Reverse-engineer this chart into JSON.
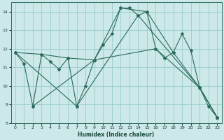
{
  "xlabel": "Humidex (Indice chaleur)",
  "ylabel": "",
  "xlim": [
    -0.5,
    23.5
  ],
  "ylim": [
    8,
    14.5
  ],
  "yticks": [
    8,
    9,
    10,
    11,
    12,
    13,
    14
  ],
  "xticks": [
    0,
    1,
    2,
    3,
    4,
    5,
    6,
    7,
    8,
    9,
    10,
    11,
    12,
    13,
    14,
    15,
    16,
    17,
    18,
    19,
    20,
    21,
    22,
    23
  ],
  "bg_color": "#cce8e8",
  "grid_color": "#99cccc",
  "line_color": "#2a6b5a",
  "lines": [
    {
      "x": [
        0,
        1,
        2,
        3,
        4,
        5,
        6,
        7,
        8,
        9,
        10,
        11,
        12,
        13,
        14,
        15,
        16,
        17,
        18,
        19,
        20,
        21,
        22,
        23
      ],
      "y": [
        11.8,
        11.2,
        8.9,
        11.7,
        11.3,
        10.9,
        11.5,
        8.9,
        10.0,
        11.4,
        12.2,
        12.8,
        14.2,
        14.2,
        13.8,
        14.0,
        12.0,
        11.5,
        11.8,
        12.8,
        11.9,
        9.9,
        8.9,
        8.3
      ]
    },
    {
      "x": [
        0,
        3,
        6,
        9,
        12,
        15,
        18,
        21,
        23
      ],
      "y": [
        11.8,
        11.7,
        11.5,
        11.4,
        14.2,
        14.0,
        11.8,
        9.9,
        8.3
      ]
    },
    {
      "x": [
        0,
        7,
        14,
        21,
        23
      ],
      "y": [
        11.8,
        8.9,
        13.8,
        9.9,
        8.3
      ]
    },
    {
      "x": [
        2,
        9,
        16,
        21,
        23
      ],
      "y": [
        8.9,
        11.4,
        12.0,
        9.9,
        8.3
      ]
    }
  ]
}
